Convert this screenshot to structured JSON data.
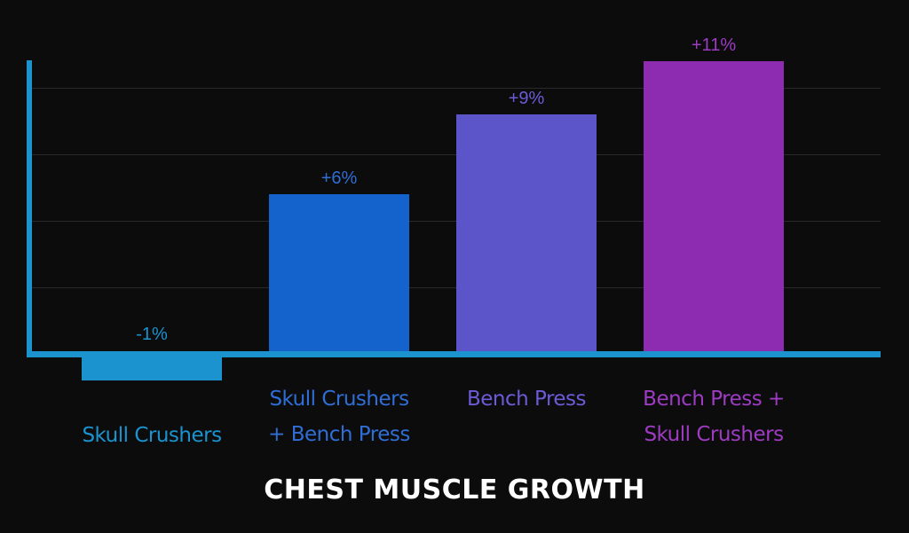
{
  "chart_data": {
    "type": "bar",
    "title": "CHEST MUSCLE GROWTH",
    "xlabel": "",
    "ylabel": "",
    "ylim": [
      -2,
      11
    ],
    "grid": true,
    "categories": [
      [
        "Skull Crushers"
      ],
      [
        "Skull Crushers",
        "+ Bench Press"
      ],
      [
        "Bench Press"
      ],
      [
        "Bench Press +",
        "Skull Crushers"
      ]
    ],
    "values": [
      -1,
      6,
      9,
      11
    ],
    "value_labels": [
      "-1%",
      "+6%",
      "+9%",
      "+11%"
    ],
    "colors": [
      "#1a93cf",
      "#1463cc",
      "#5b55c9",
      "#8d2cb0"
    ],
    "label_colors": [
      "#1a93cf",
      "#2f6ed4",
      "#6c5bd6",
      "#9d3bc2"
    ],
    "axis_color": "#1a93cf",
    "grid_color": "#2a2a2e",
    "background": "#0c0c0d",
    "title_color": "#ffffff"
  }
}
